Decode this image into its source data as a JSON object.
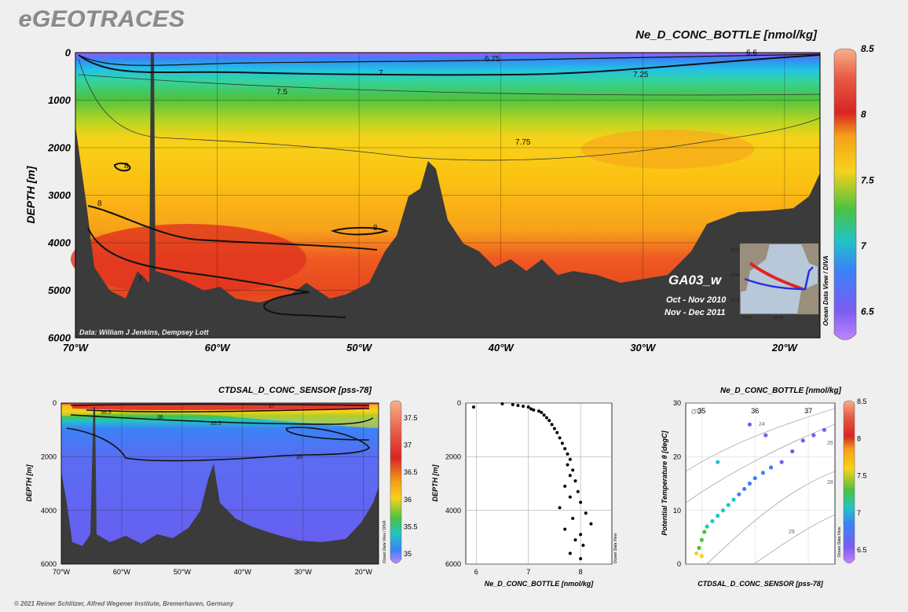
{
  "brand": "eGEOTRACES",
  "copyright": "© 2021 Reiner Schlitzer, Alfred Wegener Institute, Bremerhaven, Germany",
  "colors": {
    "seafloor": "#3b3b3b",
    "background": "#efefef",
    "contour": "#111111"
  },
  "chart_data": [
    {
      "id": "section-ne",
      "type": "heatmap",
      "title": "Ne_D_CONC_BOTTLE [nmol/kg]",
      "ylabel": "DEPTH [m]",
      "xlabel": "",
      "x_ticks": [
        "70°W",
        "60°W",
        "50°W",
        "40°W",
        "30°W",
        "20°W"
      ],
      "x_tick_values": [
        -70,
        -60,
        -50,
        -40,
        -30,
        -20
      ],
      "xlim": [
        -70,
        -17.5
      ],
      "y_ticks": [
        "0",
        "1000",
        "2000",
        "3000",
        "4000",
        "5000",
        "6000"
      ],
      "y_tick_values": [
        0,
        1000,
        2000,
        3000,
        4000,
        5000,
        6000
      ],
      "ylim": [
        0,
        6000
      ],
      "colorbar": {
        "ticks": [
          "8.5",
          "8",
          "7.5",
          "7",
          "6.5"
        ],
        "tick_values": [
          8.5,
          8,
          7.5,
          7,
          6.5
        ],
        "range": [
          6.3,
          8.5
        ]
      },
      "contour_labels": [
        "6.75",
        "7",
        "7.25",
        "7.5",
        "7.75",
        "8",
        "8",
        "8",
        "7",
        "6.6"
      ],
      "source_note": "Data: William J Jenkins, Dempsey Lott",
      "inset": {
        "cruise": "GA03_w",
        "dates": [
          "Oct - Nov 2010",
          "Nov - Dec 2011"
        ],
        "lat_labels": [
          "40°N",
          "30°N",
          "20°N"
        ],
        "lon_labels": [
          "60°W",
          "40°W"
        ]
      },
      "side_label": "Ocean Data View / DIVA"
    },
    {
      "id": "section-sal",
      "type": "heatmap",
      "title": "CTDSAL_D_CONC_SENSOR [pss-78]",
      "ylabel": "DEPTH [m]",
      "x_ticks": [
        "70°W",
        "60°W",
        "50°W",
        "40°W",
        "30°W",
        "20°W"
      ],
      "x_tick_values": [
        -70,
        -60,
        -50,
        -40,
        -30,
        -20
      ],
      "xlim": [
        -70,
        -17.5
      ],
      "y_ticks": [
        "0",
        "2000",
        "4000",
        "6000"
      ],
      "y_tick_values": [
        0,
        2000,
        4000,
        6000
      ],
      "ylim": [
        0,
        6000
      ],
      "colorbar": {
        "ticks": [
          "37.5",
          "37",
          "36.5",
          "36",
          "35.5",
          "35"
        ],
        "tick_values": [
          37.5,
          37,
          36.5,
          36,
          35.5,
          35
        ],
        "range": [
          34.8,
          37.8
        ]
      },
      "contour_labels": [
        "37",
        "36.5",
        "36",
        "35.5",
        "35"
      ],
      "side_label": "Ocean Data View / DIVA"
    },
    {
      "id": "profile-ne",
      "type": "scatter",
      "title": "",
      "xlabel": "Ne_D_CONC_BOTTLE [nmol/kg]",
      "ylabel": "DEPTH [m]",
      "x_ticks": [
        "6",
        "7",
        "8"
      ],
      "x_tick_values": [
        6,
        7,
        8
      ],
      "xlim": [
        5.8,
        8.6
      ],
      "y_ticks": [
        "0",
        "2000",
        "4000",
        "6000"
      ],
      "y_tick_values": [
        0,
        2000,
        4000,
        6000
      ],
      "ylim": [
        0,
        6000
      ],
      "grid": true,
      "points": [
        [
          5.95,
          150
        ],
        [
          6.5,
          30
        ],
        [
          6.7,
          60
        ],
        [
          6.8,
          90
        ],
        [
          6.9,
          120
        ],
        [
          7.0,
          150
        ],
        [
          7.05,
          220
        ],
        [
          7.1,
          260
        ],
        [
          7.2,
          300
        ],
        [
          7.25,
          350
        ],
        [
          7.3,
          450
        ],
        [
          7.35,
          550
        ],
        [
          7.4,
          650
        ],
        [
          7.45,
          800
        ],
        [
          7.5,
          950
        ],
        [
          7.55,
          1100
        ],
        [
          7.6,
          1300
        ],
        [
          7.65,
          1500
        ],
        [
          7.7,
          1700
        ],
        [
          7.75,
          1900
        ],
        [
          7.8,
          2100
        ],
        [
          7.75,
          2300
        ],
        [
          7.85,
          2500
        ],
        [
          7.8,
          2700
        ],
        [
          7.9,
          2900
        ],
        [
          7.7,
          3100
        ],
        [
          7.95,
          3300
        ],
        [
          7.8,
          3500
        ],
        [
          8.0,
          3700
        ],
        [
          7.6,
          3900
        ],
        [
          8.1,
          4100
        ],
        [
          7.85,
          4300
        ],
        [
          8.2,
          4500
        ],
        [
          7.7,
          4700
        ],
        [
          8.0,
          4900
        ],
        [
          7.9,
          5100
        ],
        [
          8.05,
          5300
        ],
        [
          7.8,
          5600
        ],
        [
          8.0,
          5800
        ]
      ],
      "side_label": "Ocean Data View"
    },
    {
      "id": "ts-ne",
      "type": "scatter",
      "title": "Ne_D_CONC_BOTTLE [nmol/kg]",
      "xlabel": "CTDSAL_D_CONC_SENSOR [pss-78]",
      "ylabel": "Potential Temperature θ [degC]",
      "x_ticks": [
        "35",
        "36",
        "37"
      ],
      "x_tick_values": [
        35,
        36,
        37
      ],
      "xlim": [
        34.7,
        37.5
      ],
      "y_ticks": [
        "0",
        "10",
        "20",
        "30"
      ],
      "y_tick_values": [
        0,
        10,
        20,
        30
      ],
      "ylim": [
        0,
        30
      ],
      "sigma_label": "σ0",
      "isopycnal_labels": [
        "24",
        "26",
        "28",
        "29"
      ],
      "grid": true,
      "points": [
        [
          34.9,
          2,
          7.6
        ],
        [
          34.95,
          3,
          7.55
        ],
        [
          35.0,
          4.5,
          7.5
        ],
        [
          35.05,
          6,
          7.4
        ],
        [
          35.1,
          7,
          7.35
        ],
        [
          35.2,
          8,
          7.3
        ],
        [
          35.3,
          9,
          7.25
        ],
        [
          35.4,
          10,
          7.2
        ],
        [
          35.5,
          11,
          7.15
        ],
        [
          35.6,
          12,
          7.1
        ],
        [
          35.7,
          13,
          7.05
        ],
        [
          35.8,
          14,
          7.0
        ],
        [
          35.9,
          15,
          6.95
        ],
        [
          36.0,
          16,
          6.9
        ],
        [
          36.15,
          17,
          6.85
        ],
        [
          36.3,
          18,
          6.8
        ],
        [
          36.5,
          19,
          6.75
        ],
        [
          36.7,
          21,
          6.7
        ],
        [
          36.9,
          23,
          6.6
        ],
        [
          37.1,
          24,
          6.55
        ],
        [
          37.3,
          25,
          6.5
        ],
        [
          36.2,
          24,
          6.7
        ],
        [
          35.9,
          26,
          6.6
        ],
        [
          35.3,
          19,
          7.1
        ],
        [
          35.0,
          1.5,
          7.7
        ]
      ],
      "colorbar": {
        "ticks": [
          "8.5",
          "8",
          "7.5",
          "7",
          "6.5"
        ],
        "tick_values": [
          8.5,
          8,
          7.5,
          7,
          6.5
        ],
        "range": [
          6.3,
          8.5
        ]
      },
      "side_label": "Ocean Data View"
    }
  ]
}
